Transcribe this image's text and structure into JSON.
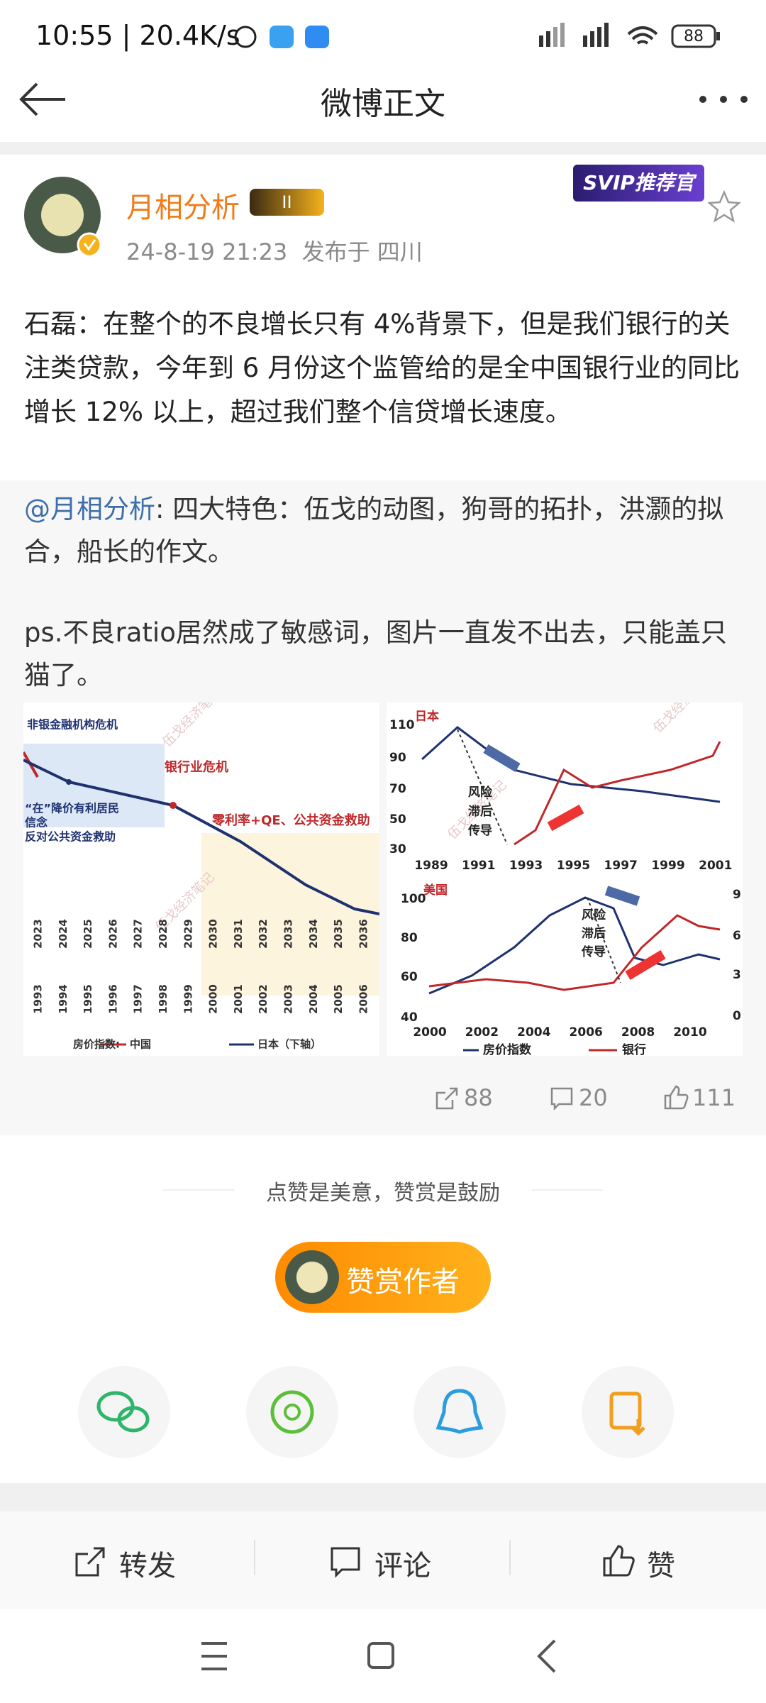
{
  "status_bar": {
    "time": "10:55",
    "speed": "20.4K/s",
    "battery": "88"
  },
  "header": {
    "title": "微博正文"
  },
  "post": {
    "author": "月相分析",
    "badge_level": "II",
    "badge": "SVIP推荐官",
    "time": "24-8-19 21:23",
    "location": "发布于 四川",
    "text": "石磊：在整个的不良增长只有 4%背景下，但是我们银行的关注类贷款，今年到 6 月份这个监管给的是全中国银行业的同比增长 12% 以上，超过我们整个信贷增长速度。",
    "repost": {
      "author": "@月相分析",
      "text": ": 四大特色：伍戈的动图，狗哥的拓扑，洪灏的拟合，船长的作文。",
      "note": "ps.不良ratio居然成了敏感词，图片一直发不出去，只能盖只猫了。"
    }
  },
  "images": {
    "watermark": "伍戈经济笔记",
    "left": {
      "labels": [
        "非银金融机构危机",
        "银行业危机",
        "零利率+QE、公共资金救助",
        "“在”降价有利居民",
        "信念",
        "反对公共资金救助"
      ],
      "years_top": [
        "2023",
        "2024",
        "2025",
        "2026",
        "2027",
        "2028",
        "2029",
        "2030",
        "2031",
        "2032",
        "2033",
        "2034",
        "2035",
        "2036"
      ],
      "years_bottom": [
        "1993",
        "1994",
        "1995",
        "1996",
        "1997",
        "1998",
        "1999",
        "2000",
        "2001",
        "2002",
        "2003",
        "2004",
        "2005",
        "2006"
      ],
      "legend_title": "房价指数:",
      "legend": [
        "中国",
        "日本（下轴）"
      ]
    },
    "right": {
      "top_title": "日本",
      "top_yticks": [
        "110",
        "90",
        "70",
        "50",
        "30"
      ],
      "top_years": [
        "1989",
        "1991",
        "1993",
        "1995",
        "1997",
        "1999",
        "2001"
      ],
      "note": [
        "风险",
        "滞后",
        "传导"
      ],
      "bottom_title": "美国",
      "bottom_yticks": [
        "100",
        "80",
        "60",
        "40"
      ],
      "bottom_y2ticks": [
        "9",
        "6",
        "3",
        "0"
      ],
      "bottom_years": [
        "2000",
        "2002",
        "2004",
        "2006",
        "2008",
        "2010"
      ],
      "legend": [
        "房价指数",
        "银行"
      ]
    }
  },
  "stats": {
    "reposts": "88",
    "comments": "20",
    "likes": "111"
  },
  "reward": {
    "slogan": "点赞是美意，赞赏是鼓励",
    "button": "赞赏作者"
  },
  "actions": [
    "转发",
    "评论",
    "赞"
  ]
}
